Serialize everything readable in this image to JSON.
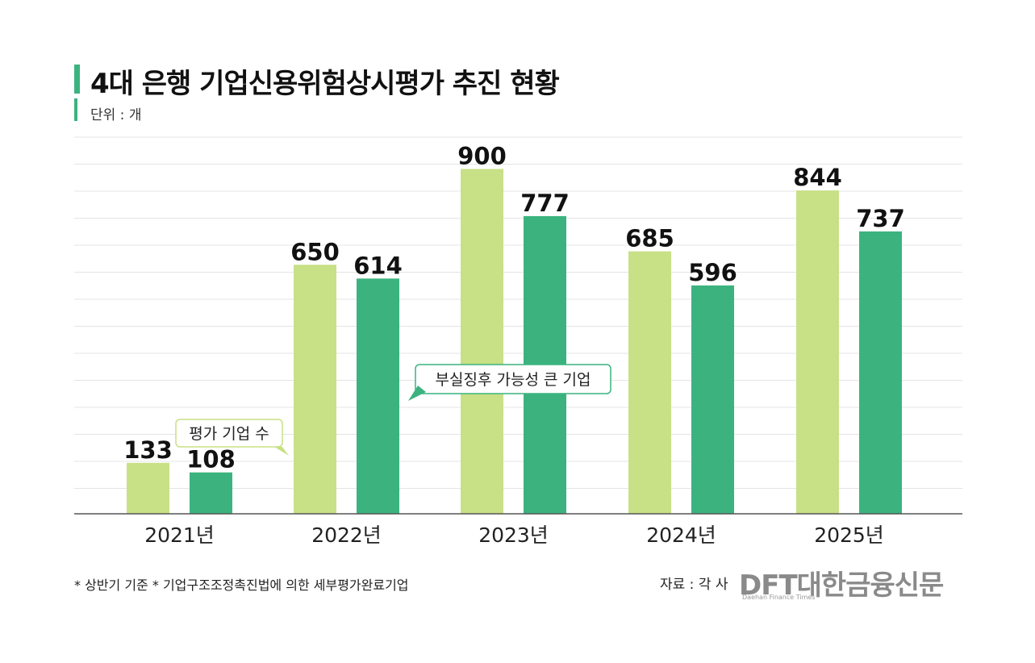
{
  "title": "4대 은행 기업신용위험상시평가 추진 현황",
  "unit": "단위 : 개",
  "chart_data": {
    "type": "bar",
    "categories": [
      "2021년",
      "2022년",
      "2023년",
      "2024년",
      "2025년"
    ],
    "series": [
      {
        "name": "평가 기업 수",
        "values": [
          133,
          650,
          900,
          685,
          844
        ],
        "color": "#c8e086"
      },
      {
        "name": "부실징후 가능성 큰 기업",
        "values": [
          108,
          614,
          777,
          596,
          737
        ],
        "color": "#3cb37f"
      }
    ],
    "ylim": [
      0,
      1000
    ],
    "grid": true
  },
  "footnote": "* 상반기 기준  * 기업구조조정촉진법에 의한 세부평가완료기업",
  "source": "자료 : 각 사",
  "logo": {
    "main": "DFT대한금융신문",
    "sub": "Daehan Finance Times"
  }
}
